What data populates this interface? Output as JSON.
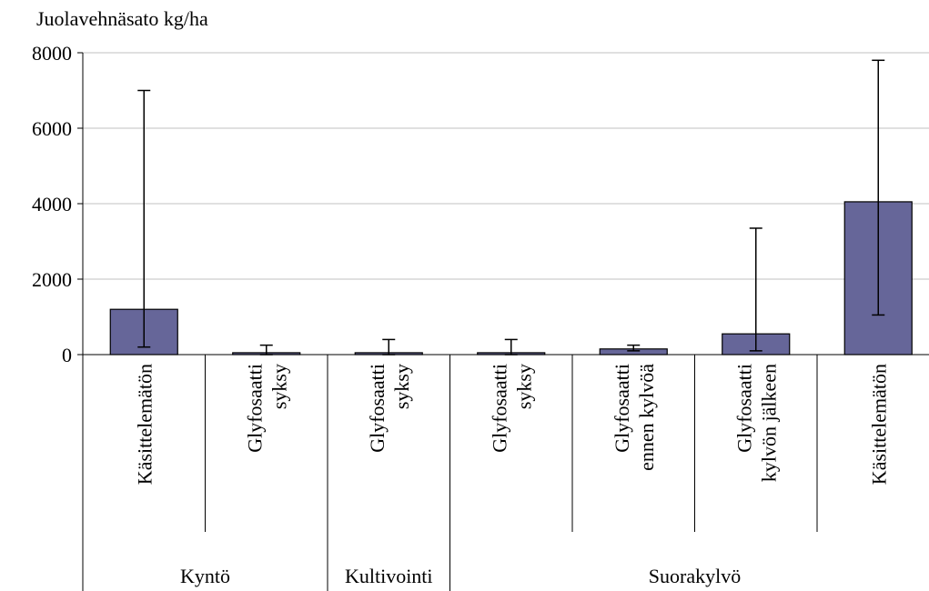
{
  "chart_data": {
    "type": "bar",
    "title": "Juolavehnäsato kg/ha",
    "categories": [
      [
        "Käsittelemätön"
      ],
      [
        "Glyfosaatti",
        "syksy"
      ],
      [
        "Glyfosaatti",
        "syksy"
      ],
      [
        "Glyfosaatti",
        "syksy"
      ],
      [
        "Glyfosaatti",
        "ennen kylvöä"
      ],
      [
        "Glyfosaatti",
        "kylvön jälkeen"
      ],
      [
        "Käsittelemätön"
      ]
    ],
    "groups": [
      "Kyntö",
      "Kyntö",
      "Kultivointi",
      "Suorakylvö",
      "Suorakylvö",
      "Suorakylvö",
      "Suorakylvö"
    ],
    "series": [
      {
        "color": "#666699",
        "values": [
          1200,
          50,
          50,
          50,
          150,
          550,
          4050
        ],
        "error_plus": [
          5800,
          200,
          350,
          350,
          100,
          2800,
          3750
        ],
        "error_minus": [
          1000,
          50,
          50,
          50,
          50,
          450,
          3000
        ]
      }
    ],
    "ylim": [
      0,
      8000
    ],
    "yticks": [
      0,
      2000,
      4000,
      6000,
      8000
    ],
    "grid": true
  }
}
